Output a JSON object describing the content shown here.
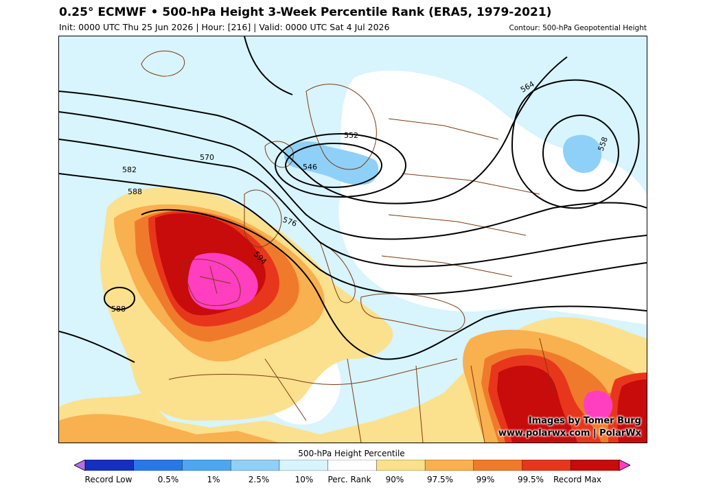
{
  "header": {
    "title": "0.25° ECMWF • 500-hPa Height 3-Week Percentile Rank (ERA5, 1979-2021)",
    "subtitle": "Init: 0000 UTC Thu 25 Jun 2026 | Hour: [216] | Valid: 0000 UTC Sat 4 Jul 2026",
    "contour_note": "Contour: 500-hPa Geopotential Height"
  },
  "map": {
    "contour_labels": [
      "546",
      "552",
      "558",
      "564",
      "570",
      "576",
      "582",
      "588",
      "594",
      "588"
    ],
    "credit_line1": "Images by Tomer Burg",
    "credit_line2": "www.polarwx.com | PolarWx"
  },
  "colorbar": {
    "title": "500-hPa Height Percentile",
    "labels": [
      "Record Low",
      "0.5%",
      "1%",
      "2.5%",
      "10%",
      "Perc. Rank",
      "90%",
      "97.5%",
      "99%",
      "99.5%",
      "Record Max"
    ],
    "colors": [
      "#b66fe8",
      "#1530c0",
      "#2878e8",
      "#4fa6f0",
      "#8fd0f8",
      "#d8f4fc",
      "#ffffff",
      "#fbe08e",
      "#f9b04e",
      "#f07a2c",
      "#e8361c",
      "#c80b0b",
      "#ff3ec0"
    ]
  }
}
